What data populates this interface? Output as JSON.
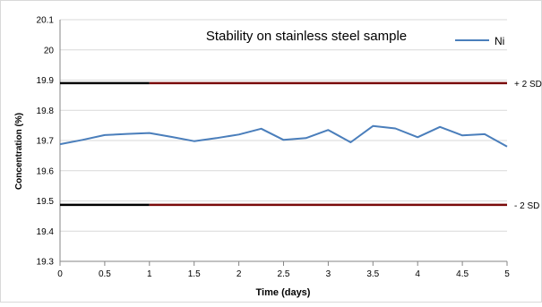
{
  "chart_data": {
    "type": "line",
    "title": "Stability on stainless steel sample",
    "xlabel": "Time (days)",
    "ylabel": "Concentration (%)",
    "xlim": [
      0,
      5
    ],
    "ylim": [
      19.3,
      20.1
    ],
    "x_ticks": [
      "0",
      "0.5",
      "1",
      "1.5",
      "2",
      "2.5",
      "3",
      "3.5",
      "4",
      "4.5",
      "5"
    ],
    "y_ticks": [
      "19.3",
      "19.4",
      "19.5",
      "19.6",
      "19.7",
      "19.8",
      "19.9",
      "20",
      "20.1"
    ],
    "grid": "horizontal",
    "legend": "top-right",
    "series": [
      {
        "name": "Ni",
        "color": "#4a7ebb",
        "x": [
          0,
          0.25,
          0.5,
          0.75,
          1,
          1.25,
          1.5,
          1.75,
          2,
          2.25,
          2.5,
          2.75,
          3,
          3.25,
          3.5,
          3.75,
          4,
          4.25,
          4.5,
          4.75,
          5
        ],
        "y": [
          19.688,
          19.702,
          19.718,
          19.722,
          19.725,
          19.712,
          19.698,
          19.708,
          19.72,
          19.739,
          19.702,
          19.708,
          19.735,
          19.694,
          19.748,
          19.74,
          19.711,
          19.745,
          19.717,
          19.721,
          19.68
        ]
      }
    ],
    "reference_lines": [
      {
        "label": "+ 2 SD",
        "y": 19.89,
        "color_left": "#000000",
        "color_right": "#7a0a0a",
        "x_split": 1
      },
      {
        "label": "- 2 SD",
        "y": 19.487,
        "color_left": "#000000",
        "color_right": "#7a0a0a",
        "x_split": 1
      }
    ]
  }
}
